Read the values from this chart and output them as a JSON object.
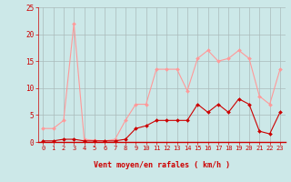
{
  "x": [
    0,
    1,
    2,
    3,
    4,
    5,
    6,
    7,
    8,
    9,
    10,
    11,
    12,
    13,
    14,
    15,
    16,
    17,
    18,
    19,
    20,
    21,
    22,
    23
  ],
  "rafales": [
    2.5,
    2.5,
    4,
    22,
    0.5,
    0.3,
    0.2,
    0.5,
    4,
    7,
    7,
    13.5,
    13.5,
    13.5,
    9.5,
    15.5,
    17,
    15,
    15.5,
    17,
    15.5,
    8.5,
    7,
    13.5
  ],
  "moyen": [
    0.2,
    0.2,
    0.5,
    0.5,
    0.2,
    0.2,
    0.2,
    0.2,
    0.5,
    2.5,
    3,
    4,
    4,
    4,
    4,
    7,
    5.5,
    7,
    5.5,
    8,
    7,
    2,
    1.5,
    5.5
  ],
  "color_rafales": "#ff9999",
  "color_moyen": "#cc0000",
  "bg_color": "#cce8e8",
  "grid_color": "#aabbbb",
  "xlabel": "Vent moyen/en rafales ( km/h )",
  "ylim": [
    0,
    25
  ],
  "xlim": [
    -0.5,
    23.5
  ],
  "yticks": [
    0,
    5,
    10,
    15,
    20,
    25
  ],
  "xticks": [
    0,
    1,
    2,
    3,
    4,
    5,
    6,
    7,
    8,
    9,
    10,
    11,
    12,
    13,
    14,
    15,
    16,
    17,
    18,
    19,
    20,
    21,
    22,
    23
  ]
}
